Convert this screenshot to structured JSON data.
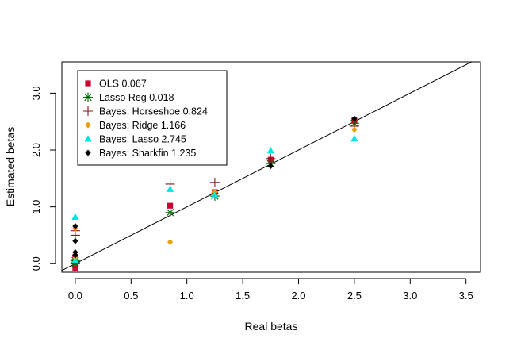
{
  "chart_data": {
    "type": "scatter",
    "title": "",
    "xlabel": "Real betas",
    "ylabel": "Estimated betas",
    "xlim": [
      -0.12,
      3.63
    ],
    "ylim": [
      -0.15,
      3.55
    ],
    "x_ticks": [
      0.0,
      0.5,
      1.0,
      1.5,
      2.0,
      2.5,
      3.0,
      3.5
    ],
    "x_tick_labels": [
      "0.0",
      "0.5",
      "1.0",
      "1.5",
      "2.0",
      "2.5",
      "3.0",
      "3.5"
    ],
    "y_ticks": [
      0.0,
      1.0,
      2.0,
      3.0
    ],
    "y_tick_labels": [
      "0.0",
      "1.0",
      "2.0",
      "3.0"
    ],
    "reference_line": {
      "slope": 1,
      "intercept": 0
    },
    "legend_position": "top-left",
    "series": [
      {
        "name": "OLS 0.067",
        "marker": "square",
        "color": "#cc0033",
        "points": [
          [
            0,
            -0.08
          ],
          [
            0,
            0.03
          ],
          [
            0,
            0.12
          ],
          [
            0.85,
            1.02
          ],
          [
            1.25,
            1.26
          ],
          [
            1.75,
            1.83
          ],
          [
            2.5,
            2.52
          ]
        ]
      },
      {
        "name": "Lasso Reg 0.018",
        "marker": "asterisk",
        "color": "#006600",
        "points": [
          [
            0,
            0.0
          ],
          [
            0,
            0.02
          ],
          [
            0,
            0.05
          ],
          [
            0.85,
            0.9
          ],
          [
            1.25,
            1.19
          ],
          [
            1.75,
            1.76
          ],
          [
            2.5,
            2.47
          ]
        ]
      },
      {
        "name": "Bayes: Horseshoe 0.824",
        "marker": "plus",
        "color": "#8b1a1a",
        "points": [
          [
            0,
            0.0
          ],
          [
            0,
            0.5
          ],
          [
            0,
            0.58
          ],
          [
            0.85,
            1.4
          ],
          [
            1.25,
            1.43
          ],
          [
            1.75,
            1.85
          ],
          [
            2.5,
            2.42
          ]
        ]
      },
      {
        "name": "Bayes: Ridge 1.166",
        "marker": "diamond",
        "color": "#e6a000",
        "points": [
          [
            0,
            0.1
          ],
          [
            0,
            0.62
          ],
          [
            0.85,
            0.38
          ],
          [
            1.25,
            1.26
          ],
          [
            2.5,
            2.36
          ]
        ]
      },
      {
        "name": "Bayes: Lasso 2.745",
        "marker": "triangle",
        "color": "#00e5e5",
        "points": [
          [
            0,
            0.06
          ],
          [
            0,
            0.82
          ],
          [
            0.85,
            1.31
          ],
          [
            1.25,
            1.2
          ],
          [
            1.75,
            1.99
          ],
          [
            2.5,
            2.2
          ]
        ]
      },
      {
        "name": "Bayes: Sharkfin 1.235",
        "marker": "diamond",
        "color": "#000000",
        "points": [
          [
            0,
            0.15
          ],
          [
            0,
            0.2
          ],
          [
            0,
            0.4
          ],
          [
            0,
            0.66
          ],
          [
            1.75,
            1.72
          ],
          [
            2.5,
            2.55
          ]
        ]
      }
    ]
  }
}
